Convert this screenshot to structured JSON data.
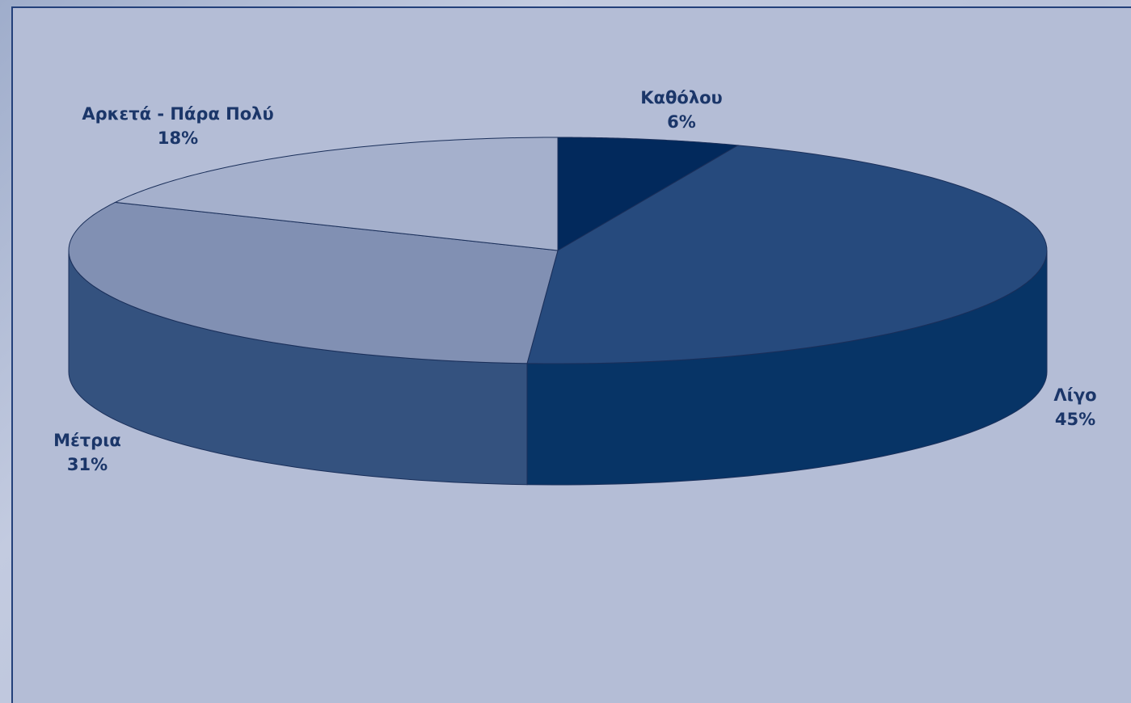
{
  "chart_data": {
    "type": "pie",
    "title": "",
    "categories": [
      "Καθόλου",
      "Λίγο",
      "Μέτρια",
      "Αρκετά - Πάρα Πολύ"
    ],
    "values": [
      6,
      45,
      31,
      18
    ],
    "value_labels": [
      "6%",
      "45%",
      "31%",
      "18%"
    ],
    "three_d": true,
    "legend": "none",
    "colors": [
      "#02295c",
      "#264a7d",
      "#8190b3",
      "#a5b0cc"
    ],
    "side_colors": [
      "#02295c",
      "#073466",
      "#34527f",
      "#5a6f99"
    ]
  }
}
